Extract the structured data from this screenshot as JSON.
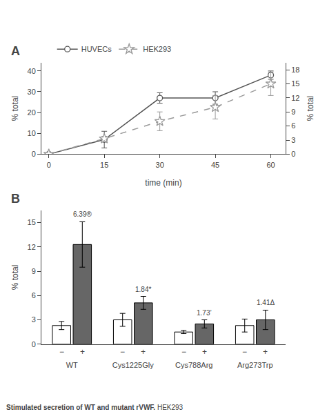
{
  "chart_data": [
    {
      "type": "line",
      "title": "A",
      "x_label": "time (min)",
      "y_label": "% total",
      "y2_label": "% total",
      "x": [
        0,
        15,
        30,
        45,
        60
      ],
      "xlim": [
        -2,
        64
      ],
      "xticks": [
        0,
        15,
        30,
        45,
        60
      ],
      "ylim": [
        0,
        44
      ],
      "yticks": [
        0,
        10,
        20,
        30,
        40
      ],
      "y2lim": [
        0,
        19.5
      ],
      "y2ticks": [
        0,
        3,
        6,
        9,
        12,
        15,
        18
      ],
      "grid": false,
      "legend": "top",
      "series": [
        {
          "name": "HUVECs",
          "color": "#555555",
          "marker": "circle",
          "line_style": "solid",
          "values": [
            0,
            7,
            27,
            27,
            38
          ],
          "errors": [
            0,
            4,
            2.5,
            3,
            2
          ]
        },
        {
          "name": "HEK293",
          "axis": "y2",
          "color": "#999999",
          "marker": "star",
          "line_style": "dashed",
          "values": [
            0,
            3.3,
            7.0,
            10.0,
            15.0
          ],
          "errors": [
            0,
            0.5,
            2.0,
            2.5,
            2.5
          ]
        }
      ]
    },
    {
      "type": "bar",
      "title": "B",
      "y_label": "% total",
      "categories": [
        "WT",
        "Cys1225Gly",
        "Cys788Arg",
        "Arg273Trp"
      ],
      "ylim": [
        0,
        16.5
      ],
      "yticks": [
        0,
        3,
        6,
        9,
        12,
        15
      ],
      "grid": false,
      "series": [
        {
          "name": "−",
          "color": "#ffffff",
          "values": [
            2.3,
            3.0,
            1.5,
            2.3
          ],
          "errors": [
            0.5,
            0.8,
            0.2,
            0.8
          ]
        },
        {
          "name": "+",
          "color": "#666666",
          "values": [
            12.3,
            5.1,
            2.5,
            3.0
          ],
          "errors": [
            2.8,
            0.8,
            0.5,
            1.2
          ],
          "annotations": [
            "6.39®",
            "1.84*",
            "1.73’",
            "1.41Δ"
          ]
        }
      ]
    }
  ],
  "caption": {
    "bold": "Stimulated secretion of WT and mutant rVWF.",
    "text": "HEK293"
  }
}
